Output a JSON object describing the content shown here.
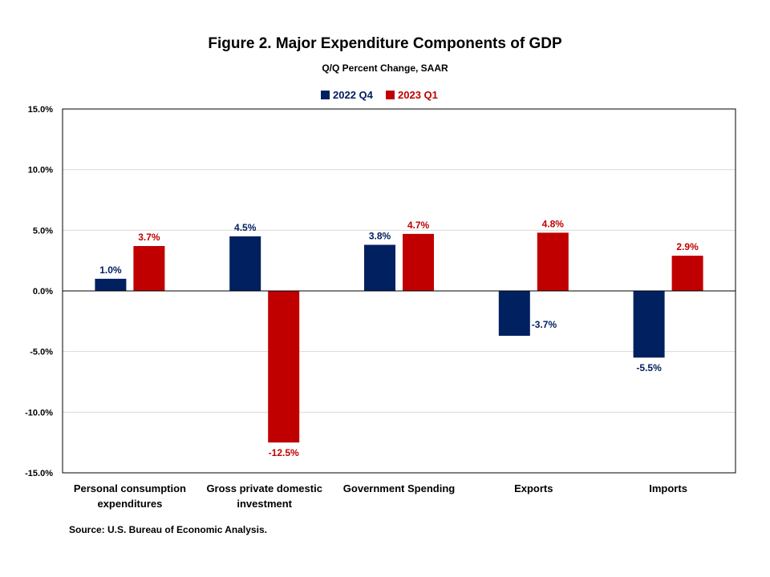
{
  "chart_data": {
    "type": "bar",
    "title": "Figure 2. Major Expenditure Components of GDP",
    "subtitle": "Q/Q Percent Change, SAAR",
    "categories": [
      [
        "Personal consumption",
        "expenditures"
      ],
      [
        "Gross private domestic",
        "investment"
      ],
      [
        "Government Spending"
      ],
      [
        "Exports"
      ],
      [
        "Imports"
      ]
    ],
    "series": [
      {
        "name": "2022 Q4",
        "color": "#002060",
        "values": [
          1.0,
          4.5,
          3.8,
          -3.7,
          -5.5
        ],
        "labels": [
          "1.0%",
          "4.5%",
          "3.8%",
          "-3.7%",
          "-5.5%"
        ]
      },
      {
        "name": "2023 Q1",
        "color": "#C00000",
        "values": [
          3.7,
          -12.5,
          4.7,
          4.8,
          2.9
        ],
        "labels": [
          "3.7%",
          "-12.5%",
          "4.7%",
          "4.8%",
          "2.9%"
        ]
      }
    ],
    "ylim": [
      -15,
      15
    ],
    "yticks": [
      15,
      10,
      5,
      0,
      -5,
      -10,
      -15
    ],
    "ytick_labels": [
      "15.0%",
      "10.0%",
      "5.0%",
      "0.0%",
      "-5.0%",
      "-10.0%",
      "-15.0%"
    ],
    "grid": true,
    "legend_position": "top-center",
    "xlabel": "",
    "ylabel": ""
  },
  "source": "Source: U.S. Bureau of Economic Analysis."
}
